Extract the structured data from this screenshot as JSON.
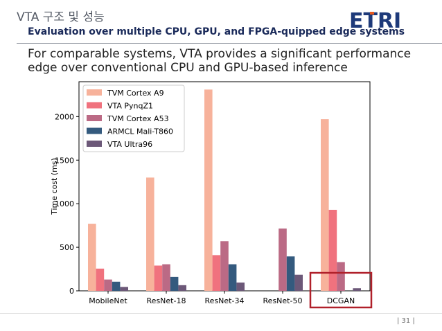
{
  "header": {
    "title": "VTA 구조 및 성능",
    "subtitle": "Evaluation over multiple CPU, GPU, and FPGA-quipped edge systems",
    "logo_text": "ETRI",
    "logo_colors": [
      "#1e3a7a",
      "#e85a1e"
    ]
  },
  "body": {
    "line1": "For comparable systems, VTA provides a significant performance",
    "line2": "edge over conventional CPU and GPU-based inference"
  },
  "footer": {
    "page": "|  31  |"
  },
  "highlight": {
    "category": "DCGAN",
    "color": "#b0202a"
  },
  "chart_data": {
    "type": "bar",
    "title": "",
    "xlabel": "",
    "ylabel": "Time cost (ms)",
    "ylim": [
      0,
      2400
    ],
    "yticks": [
      0,
      500,
      1000,
      1500,
      2000
    ],
    "legend_position": "top-left",
    "categories": [
      "MobileNet",
      "ResNet-18",
      "ResNet-34",
      "ResNet-50",
      "DCGAN"
    ],
    "series": [
      {
        "name": "TVM Cortex A9",
        "color": "#f7b29b",
        "values": [
          770,
          1300,
          2310,
          null,
          1970
        ]
      },
      {
        "name": "VTA PynqZ1",
        "color": "#f0727e",
        "values": [
          255,
          290,
          410,
          null,
          930
        ]
      },
      {
        "name": "TVM Cortex A53",
        "color": "#bb6a85",
        "values": [
          130,
          305,
          570,
          715,
          330
        ]
      },
      {
        "name": "ARMCL Mali-T860",
        "color": "#345a7e",
        "values": [
          105,
          160,
          305,
          395,
          null
        ]
      },
      {
        "name": "VTA Ultra96",
        "color": "#6c5878",
        "values": [
          45,
          65,
          95,
          185,
          30
        ]
      }
    ]
  }
}
